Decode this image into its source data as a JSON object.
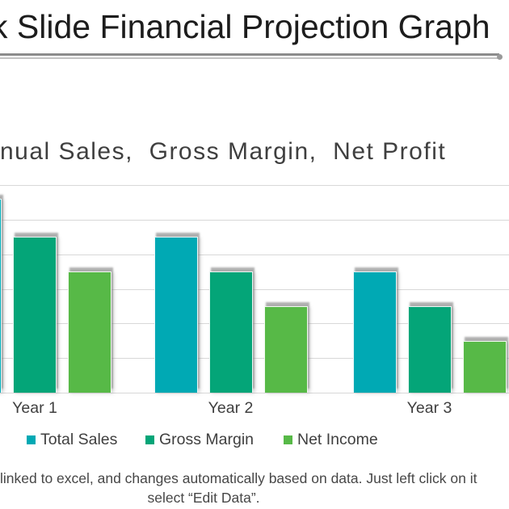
{
  "slide": {
    "title": "k Slide Financial Projection Graph"
  },
  "chart_data": {
    "type": "bar",
    "title": "nual Sales,  Gross Margin,  Net Profit",
    "categories": [
      "Year 1",
      "Year 2",
      "Year 3"
    ],
    "series": [
      {
        "name": "Total Sales",
        "color": "#00a9b4",
        "values": [
          5.6,
          4.5,
          3.5
        ]
      },
      {
        "name": "Gross Margin",
        "color": "#04a578",
        "values": [
          4.5,
          3.5,
          2.5
        ]
      },
      {
        "name": "Net Income",
        "color": "#57b947",
        "values": [
          3.5,
          2.5,
          1.5
        ]
      }
    ],
    "ylim": [
      0,
      6
    ],
    "gridlines": true,
    "gridline_color": "#d8d8d8",
    "legend_position": "bottom",
    "y_axis_tick_labels_visible": false,
    "first_category_partially_cropped": true
  },
  "footer": {
    "line1": "linked to excel, and changes automatically based on data. Just left click on it",
    "line2": "select “Edit Data”."
  },
  "colors": {
    "title_text": "#1c1c1c",
    "chart_text": "#3f3f3f",
    "footer_text": "#474747",
    "rule_dark": "#8c8c8c",
    "rule_light": "#c3c3c3"
  }
}
